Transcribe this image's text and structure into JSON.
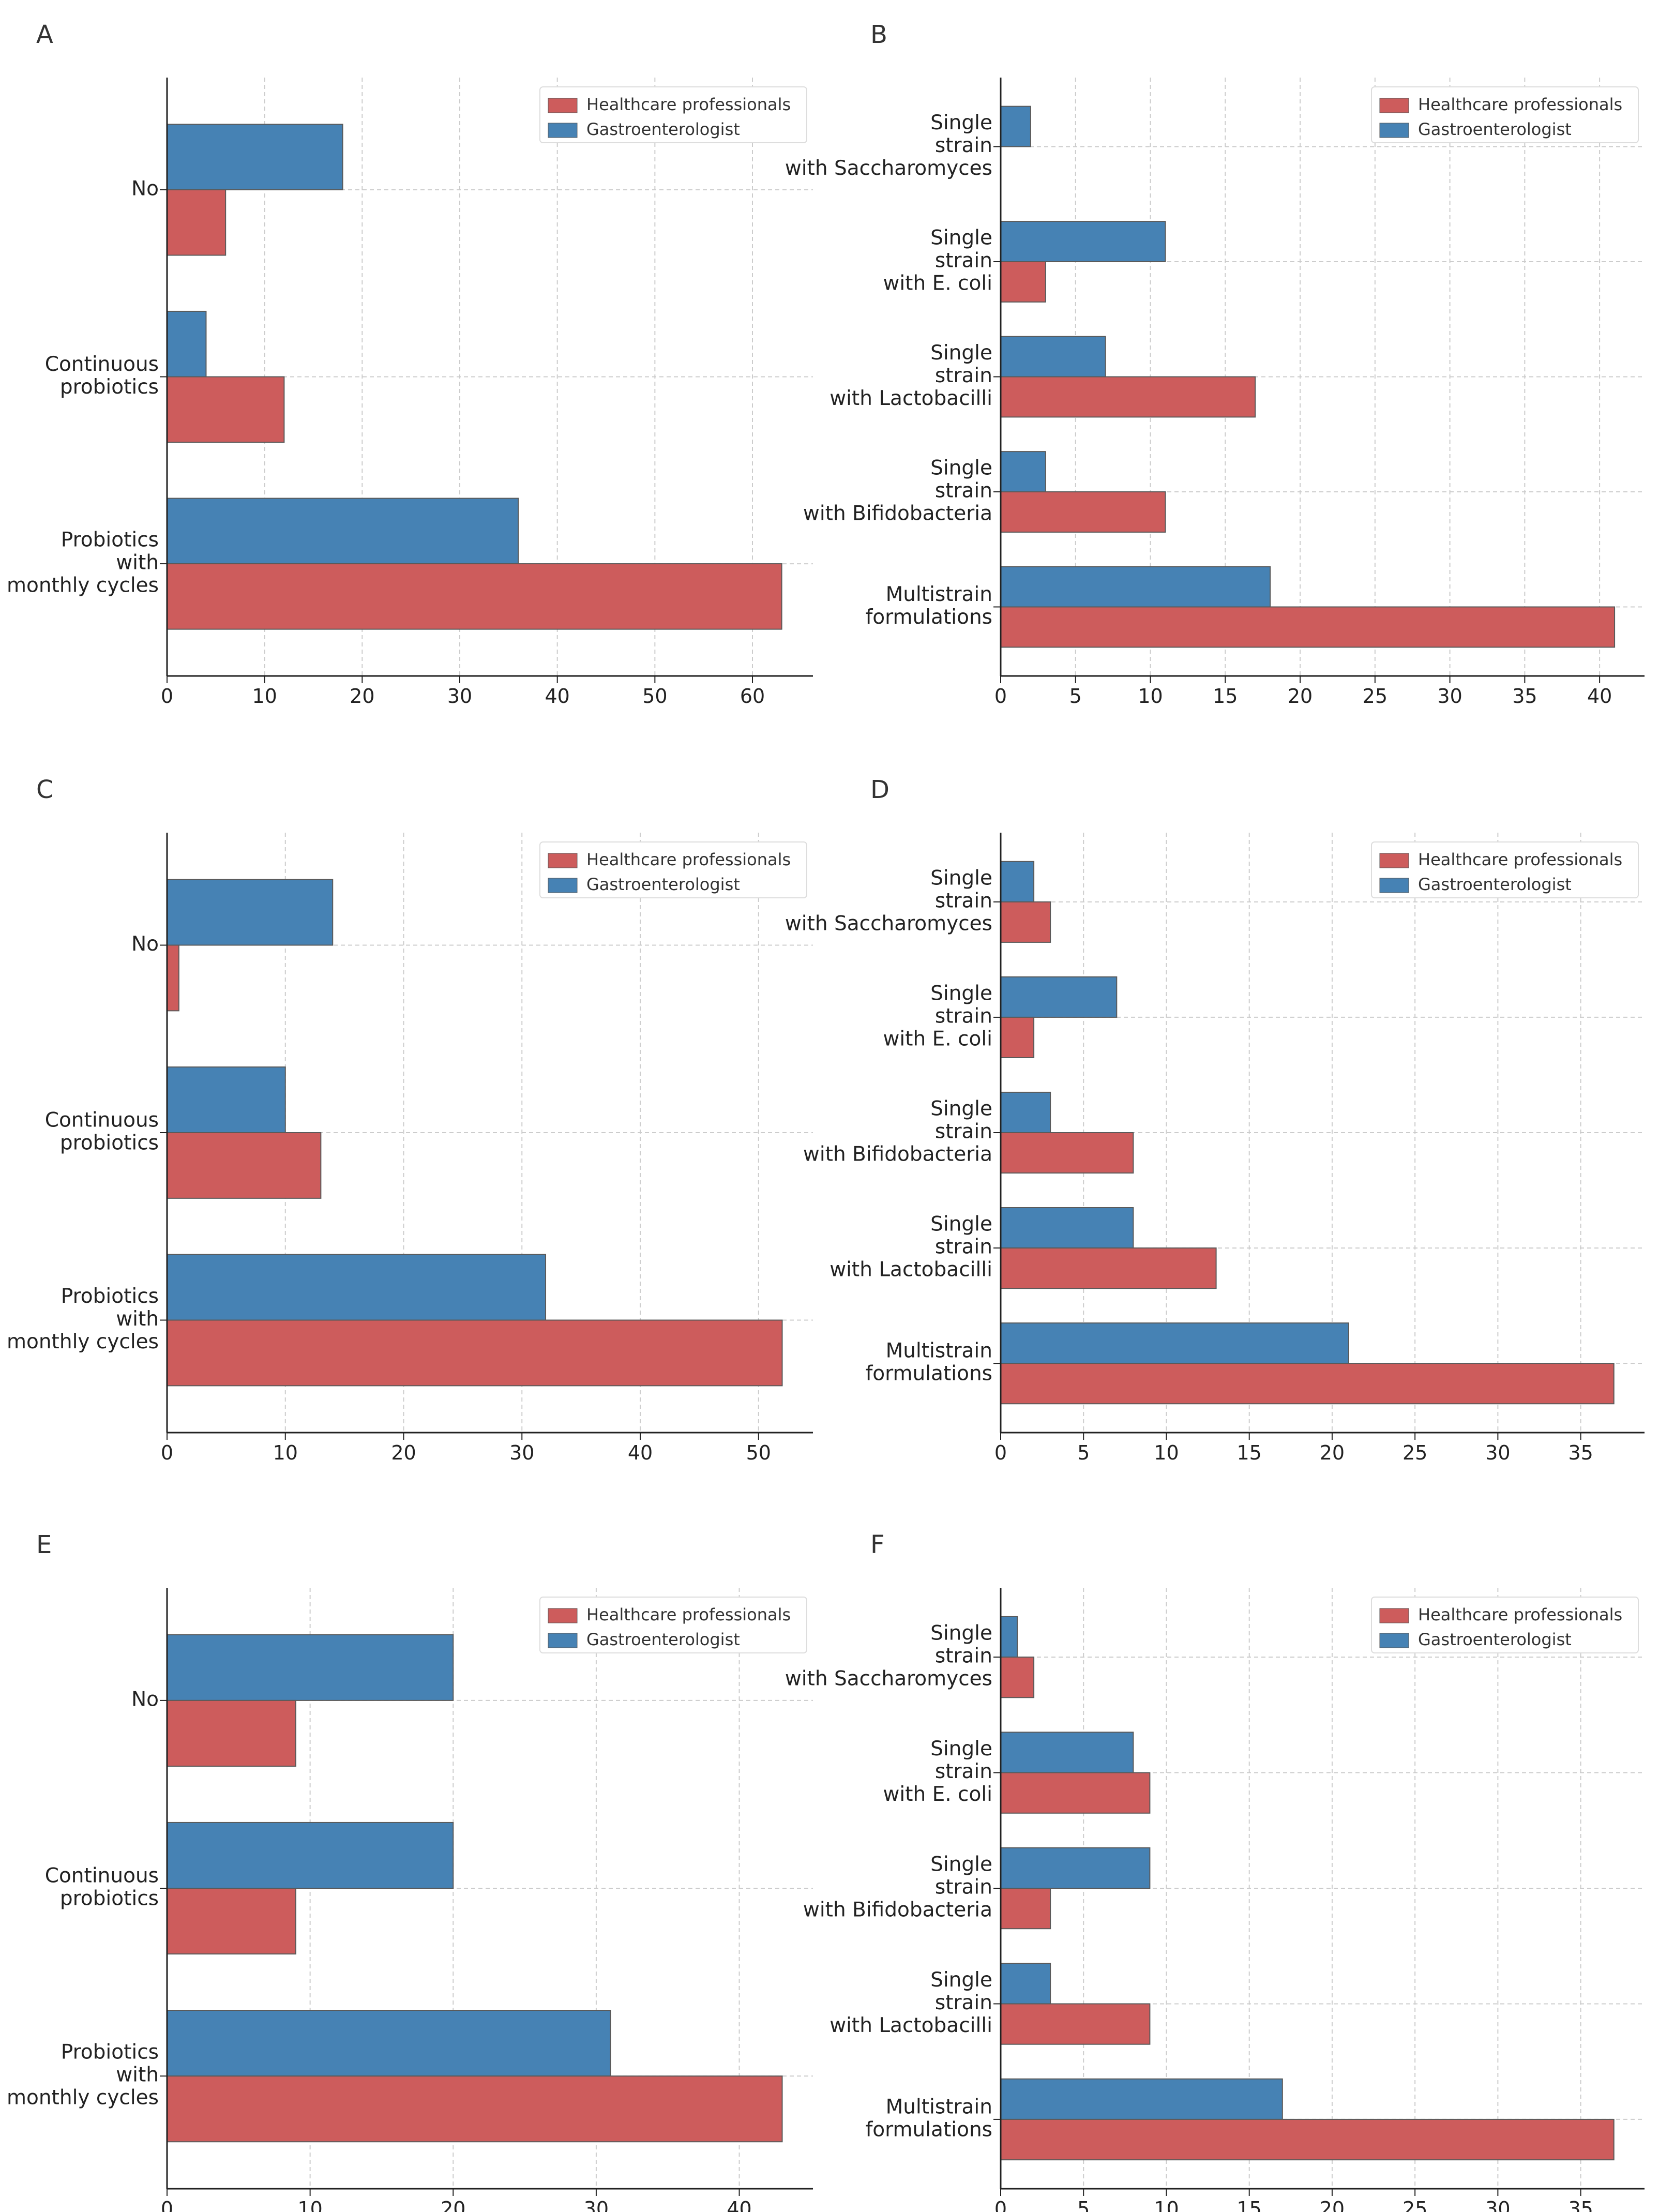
{
  "figure": {
    "legend": {
      "items": [
        "Healthcare professionals",
        "Gastroenterologist"
      ],
      "placement": "top-right"
    },
    "colors": {
      "hcp": "#cd5c5c",
      "gastro": "#4682b4",
      "edge": "#5a5a5a",
      "grid": "#cccccc",
      "axis": "#222222"
    }
  },
  "chart_data": [
    {
      "panel": "A",
      "type": "bar",
      "orientation": "horizontal",
      "xlim": [
        0,
        66.2
      ],
      "xticks": [
        "0",
        "10",
        "20",
        "30",
        "40",
        "50",
        "60"
      ],
      "categories": [
        "No",
        "Continuous probiotics",
        "Probiotics with monthly cycles"
      ],
      "category_labels": [
        [
          "No"
        ],
        [
          "Continuous",
          "probiotics"
        ],
        [
          "Probiotics",
          "with",
          "monthly cycles"
        ]
      ],
      "series": [
        {
          "name": "Gastroenterologist",
          "values": [
            18,
            4,
            36
          ]
        },
        {
          "name": "Healthcare professionals",
          "values": [
            6,
            12,
            63
          ]
        }
      ]
    },
    {
      "panel": "B",
      "type": "bar",
      "orientation": "horizontal",
      "xlim": [
        0,
        43
      ],
      "xticks": [
        "0",
        "5",
        "10",
        "15",
        "20",
        "25",
        "30",
        "35",
        "40"
      ],
      "categories": [
        "Single strain with Saccharomyces",
        "Single strain with E. coli",
        "Single strain with Lactobacilli",
        "Single strain with Bifidobacteria",
        "Multistrain formulations"
      ],
      "category_labels": [
        [
          "Single",
          "strain",
          "with Saccharomyces"
        ],
        [
          "Single",
          "strain",
          "with E. coli"
        ],
        [
          "Single",
          "strain",
          "with Lactobacilli"
        ],
        [
          "Single",
          "strain",
          "with Bifidobacteria"
        ],
        [
          "Multistrain",
          "formulations"
        ]
      ],
      "series": [
        {
          "name": "Gastroenterologist",
          "values": [
            2,
            11,
            7,
            3,
            18
          ]
        },
        {
          "name": "Healthcare professionals",
          "values": [
            0,
            3,
            17,
            11,
            41
          ]
        }
      ]
    },
    {
      "panel": "C",
      "type": "bar",
      "orientation": "horizontal",
      "xlim": [
        0,
        54.6
      ],
      "xticks": [
        "0",
        "10",
        "20",
        "30",
        "40",
        "50"
      ],
      "categories": [
        "No",
        "Continuous probiotics",
        "Probiotics with monthly cycles"
      ],
      "category_labels": [
        [
          "No"
        ],
        [
          "Continuous",
          "probiotics"
        ],
        [
          "Probiotics",
          "with",
          "monthly cycles"
        ]
      ],
      "series": [
        {
          "name": "Gastroenterologist",
          "values": [
            14,
            10,
            32
          ]
        },
        {
          "name": "Healthcare professionals",
          "values": [
            1,
            13,
            52
          ]
        }
      ]
    },
    {
      "panel": "D",
      "type": "bar",
      "orientation": "horizontal",
      "xlim": [
        0,
        38.85
      ],
      "xticks": [
        "0",
        "5",
        "10",
        "15",
        "20",
        "25",
        "30",
        "35"
      ],
      "categories": [
        "Single strain with Saccharomyces",
        "Single strain with E. coli",
        "Single strain with Bifidobacteria",
        "Single strain with Lactobacilli",
        "Multistrain formulations"
      ],
      "category_labels": [
        [
          "Single",
          "strain",
          "with Saccharomyces"
        ],
        [
          "Single",
          "strain",
          "with E. coli"
        ],
        [
          "Single",
          "strain",
          "with Bifidobacteria"
        ],
        [
          "Single",
          "strain",
          "with Lactobacilli"
        ],
        [
          "Multistrain",
          "formulations"
        ]
      ],
      "series": [
        {
          "name": "Gastroenterologist",
          "values": [
            2,
            7,
            3,
            8,
            21
          ]
        },
        {
          "name": "Healthcare professionals",
          "values": [
            3,
            2,
            8,
            13,
            37
          ]
        }
      ]
    },
    {
      "panel": "E",
      "type": "bar",
      "orientation": "horizontal",
      "xlim": [
        0,
        45.15
      ],
      "xticks": [
        "0",
        "10",
        "20",
        "30",
        "40"
      ],
      "categories": [
        "No",
        "Continuous probiotics",
        "Probiotics with monthly cycles"
      ],
      "category_labels": [
        [
          "No"
        ],
        [
          "Continuous",
          "probiotics"
        ],
        [
          "Probiotics",
          "with",
          "monthly cycles"
        ]
      ],
      "series": [
        {
          "name": "Gastroenterologist",
          "values": [
            20,
            20,
            31
          ]
        },
        {
          "name": "Healthcare professionals",
          "values": [
            9,
            9,
            43
          ]
        }
      ]
    },
    {
      "panel": "F",
      "type": "bar",
      "orientation": "horizontal",
      "xlim": [
        0,
        38.85
      ],
      "xticks": [
        "0",
        "5",
        "10",
        "15",
        "20",
        "25",
        "30",
        "35"
      ],
      "categories": [
        "Single strain with Saccharomyces",
        "Single strain with E. coli",
        "Single strain with Bifidobacteria",
        "Single strain with Lactobacilli",
        "Multistrain formulations"
      ],
      "category_labels": [
        [
          "Single",
          "strain",
          "with Saccharomyces"
        ],
        [
          "Single",
          "strain",
          "with E. coli"
        ],
        [
          "Single",
          "strain",
          "with Bifidobacteria"
        ],
        [
          "Single",
          "strain",
          "with Lactobacilli"
        ],
        [
          "Multistrain",
          "formulations"
        ]
      ],
      "series": [
        {
          "name": "Gastroenterologist",
          "values": [
            1,
            8,
            9,
            3,
            17
          ]
        },
        {
          "name": "Healthcare professionals",
          "values": [
            2,
            9,
            3,
            9,
            37
          ]
        }
      ]
    }
  ]
}
